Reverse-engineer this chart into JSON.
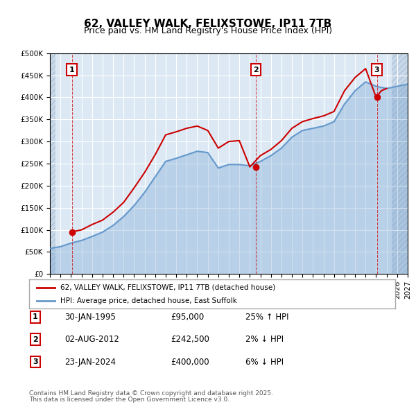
{
  "title": "62, VALLEY WALK, FELIXSTOWE, IP11 7TB",
  "subtitle": "Price paid vs. HM Land Registry's House Price Index (HPI)",
  "ylabel": "",
  "ylim": [
    0,
    500000
  ],
  "yticks": [
    0,
    50000,
    100000,
    150000,
    200000,
    250000,
    300000,
    350000,
    400000,
    450000,
    500000
  ],
  "ytick_labels": [
    "£0",
    "£50K",
    "£100K",
    "£150K",
    "£200K",
    "£250K",
    "£300K",
    "£350K",
    "£400K",
    "£450K",
    "£500K"
  ],
  "xlim_start": 1993.0,
  "xlim_end": 2027.0,
  "hpi_color": "#6699cc",
  "price_color": "#cc0000",
  "sale_marker_color": "#cc0000",
  "bg_color": "#ffffff",
  "plot_bg_color": "#dce9f5",
  "hatch_color": "#c8d8e8",
  "grid_color": "#ffffff",
  "legend_border_color": "#aaaaaa",
  "sale_box_color": "#cc0000",
  "sale_label1": "30-JAN-1995",
  "sale_price1": "£95,000",
  "sale_info1": "25% ↑ HPI",
  "sale_date_x1": 1995.08,
  "sale_price_y1": 95000,
  "sale_label2": "02-AUG-2012",
  "sale_price2": "£242,500",
  "sale_info2": "2% ↓ HPI",
  "sale_date_x2": 2012.58,
  "sale_price_y2": 242500,
  "sale_label3": "23-JAN-2024",
  "sale_price3": "£400,000",
  "sale_info3": "6% ↓ HPI",
  "sale_date_x3": 2024.07,
  "sale_price_y3": 400000,
  "legend_line1": "62, VALLEY WALK, FELIXSTOWE, IP11 7TB (detached house)",
  "legend_line2": "HPI: Average price, detached house, East Suffolk",
  "footer1": "Contains HM Land Registry data © Crown copyright and database right 2025.",
  "footer2": "This data is licensed under the Open Government Licence v3.0."
}
